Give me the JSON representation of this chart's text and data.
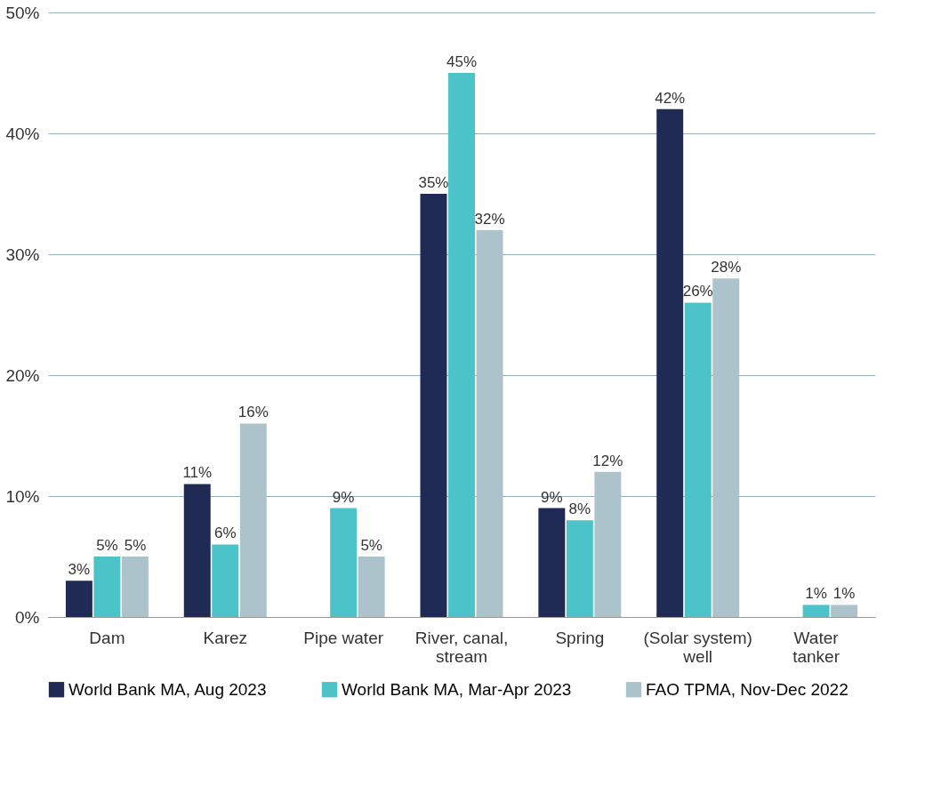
{
  "chart_data": {
    "type": "bar",
    "categories": [
      "Dam",
      "Karez",
      "Pipe water",
      "River, canal, stream",
      "Spring",
      "(Solar system) well",
      "Water tanker"
    ],
    "series": [
      {
        "name": "World Bank MA, Aug 2023",
        "color": "#1f2a55",
        "values": [
          3,
          11,
          null,
          35,
          9,
          42,
          null
        ],
        "value_labels": [
          "3%",
          "11%",
          null,
          "35%",
          "9%",
          "42%",
          null
        ]
      },
      {
        "name": "World Bank MA, Mar-Apr 2023",
        "color": "#4cc3c9",
        "values": [
          5,
          6,
          9,
          45,
          8,
          26,
          1
        ],
        "value_labels": [
          "5%",
          "6%",
          "9%",
          "45%",
          "8%",
          "26%",
          "1%"
        ]
      },
      {
        "name": "FAO TPMA, Nov-Dec 2022",
        "color": "#adc3cb",
        "values": [
          5,
          16,
          5,
          32,
          12,
          28,
          1
        ],
        "value_labels": [
          "5%",
          "16%",
          "5%",
          "32%",
          "12%",
          "28%",
          "1%"
        ]
      }
    ],
    "ylim": [
      0,
      50
    ],
    "yticks": [
      {
        "value": 0,
        "label": "0%"
      },
      {
        "value": 10,
        "label": "10%"
      },
      {
        "value": 20,
        "label": "20%"
      },
      {
        "value": 30,
        "label": "30%"
      },
      {
        "value": 40,
        "label": "40%"
      },
      {
        "value": 50,
        "label": "50%"
      }
    ],
    "grid": "y",
    "legend": "bottom"
  }
}
